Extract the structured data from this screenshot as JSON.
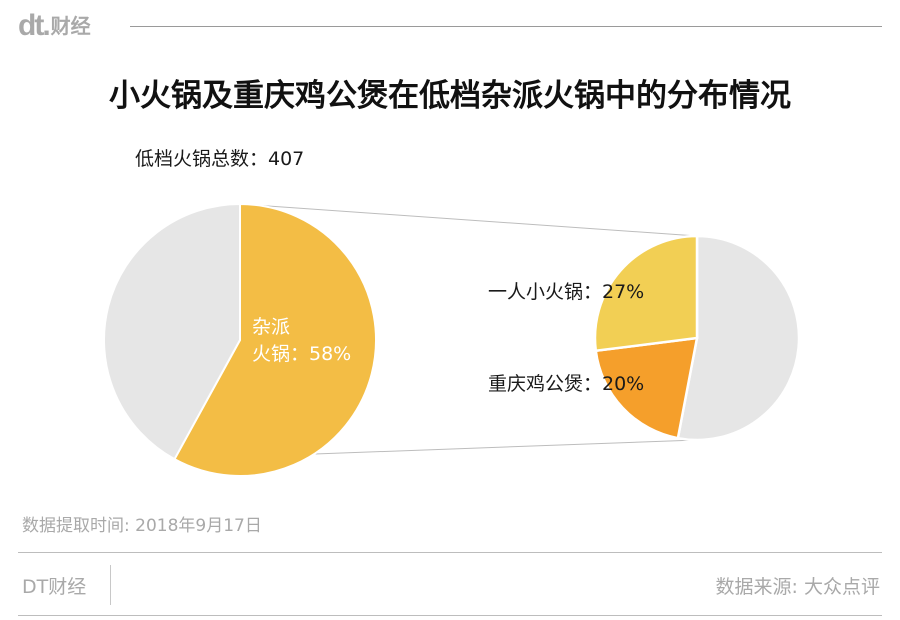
{
  "brand": {
    "logo_mark": "dt.",
    "logo_text": "财经"
  },
  "title": "小火锅及重庆鸡公煲在低档杂派火锅中的分布情况",
  "total_label": "低档火锅总数：407",
  "footer": {
    "date_note": "数据提取时间: 2018年9月17日",
    "brand": "DT财经",
    "source": "数据来源: 大众点评"
  },
  "colors": {
    "gray": "#e6e6e6",
    "yellow_main": "#f3bd45",
    "yellow_detail": "#f2cf54",
    "orange_detail": "#f59f2b",
    "connector": "#bdbdbd",
    "label_dark": "#1a1a1a",
    "label_light": "#ffffff"
  },
  "chart_data": [
    {
      "type": "pie",
      "total": 407,
      "slices": [
        {
          "name": "杂派火锅",
          "value": 58,
          "color": "#f3bd45",
          "label_line1": "杂派",
          "label_line2": "火锅：58%"
        },
        {
          "name": "",
          "value": 42,
          "color": "#e6e6e6"
        }
      ]
    },
    {
      "type": "pie",
      "slices": [
        {
          "name": "一人小火锅",
          "value": 27,
          "color": "#f2cf54",
          "label": "一人小火锅：27%"
        },
        {
          "name": "重庆鸡公煲",
          "value": 20,
          "color": "#f59f2b",
          "label": "重庆鸡公煲：20%"
        },
        {
          "name": "",
          "value": 53,
          "color": "#e6e6e6"
        }
      ]
    }
  ]
}
